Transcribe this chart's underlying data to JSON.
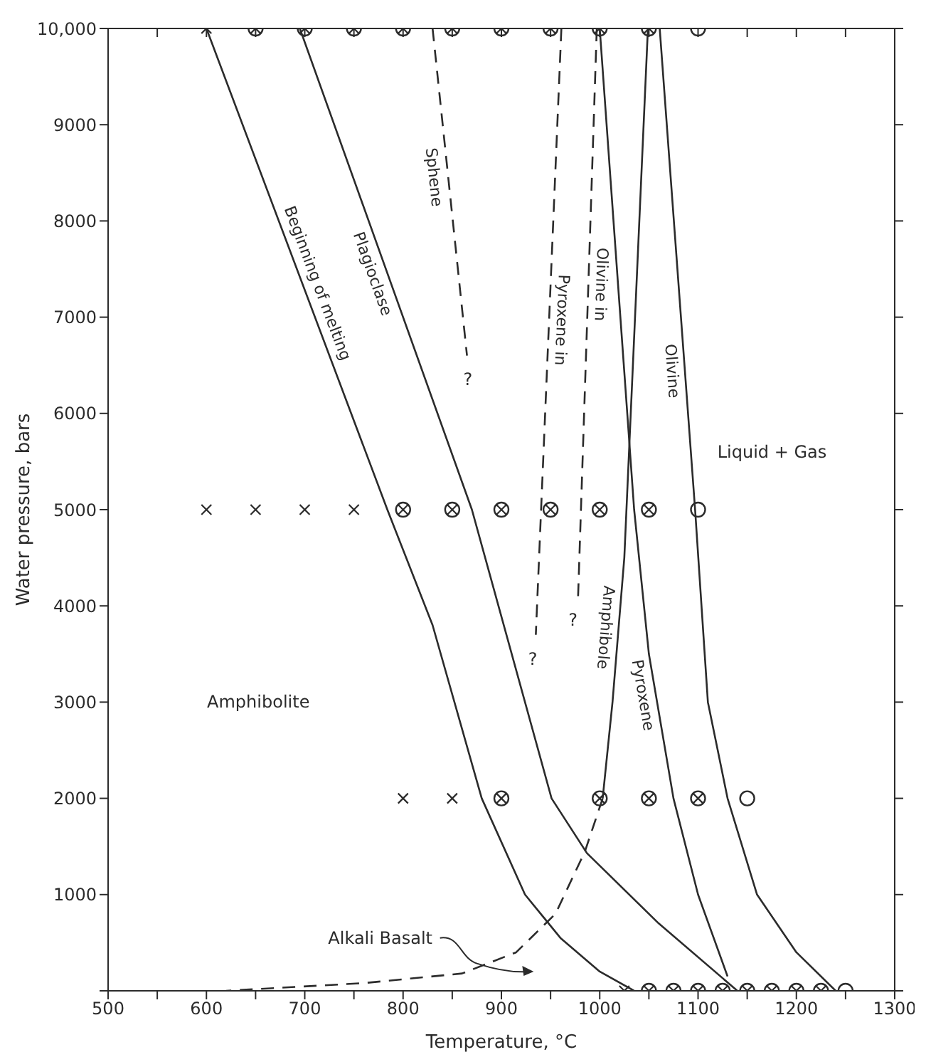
{
  "chart_data": {
    "type": "line",
    "xlabel": "Temperature, °C",
    "ylabel": "Water pressure, bars",
    "xlim": [
      500,
      1300
    ],
    "ylim": [
      0,
      10000
    ],
    "xticks": [
      500,
      {
        "value": 550,
        "label": null
      },
      600,
      {
        "value": 650,
        "label": null
      },
      700,
      {
        "value": 750,
        "label": null
      },
      800,
      {
        "value": 850,
        "label": null
      },
      900,
      {
        "value": 950,
        "label": null
      },
      1000,
      {
        "value": 1050,
        "label": null
      },
      1100,
      {
        "value": 1150,
        "label": null
      },
      1200,
      {
        "value": 1250,
        "label": null
      },
      1300
    ],
    "yticks": [
      {
        "value": 0,
        "label": null
      },
      1000,
      2000,
      3000,
      4000,
      5000,
      6000,
      7000,
      8000,
      9000,
      {
        "value": 10000,
        "label": "10,000"
      }
    ],
    "legend": false,
    "series": [
      {
        "name": "Beginning of melting",
        "color": "#2b2b2b",
        "line_style": "solid",
        "x": [
          600,
          784,
          830,
          880,
          924,
          960,
          1000,
          1035
        ],
        "values": [
          10000,
          5000,
          3800,
          2000,
          1000,
          550,
          200,
          0
        ]
      },
      {
        "name": "Plagioclase",
        "color": "#2b2b2b",
        "line_style": "solid",
        "x": [
          695,
          870,
          951,
          987,
          1060,
          1140
        ],
        "values": [
          10000,
          5000,
          2000,
          1430,
          700,
          0
        ]
      },
      {
        "name": "Sphene",
        "color": "#2b2b2b",
        "line_style": "dashed",
        "x": [
          830,
          865
        ],
        "values": [
          10000,
          6600
        ]
      },
      {
        "name": "Pyroxene in",
        "color": "#2b2b2b",
        "line_style": "dashed",
        "x": [
          961,
          935
        ],
        "values": [
          10000,
          3700
        ]
      },
      {
        "name": "Olivine in",
        "color": "#2b2b2b",
        "line_style": "dashed",
        "x": [
          997,
          978
        ],
        "values": [
          10000,
          4100
        ]
      },
      {
        "name": "Olivine",
        "color": "#2b2b2b",
        "line_style": "solid",
        "x": [
          1061,
          1097,
          1110,
          1130,
          1160,
          1200,
          1240
        ],
        "values": [
          10000,
          5000,
          3000,
          2000,
          1000,
          400,
          0
        ]
      },
      {
        "name": "Amphibole",
        "color": "#2b2b2b",
        "line_style": "solid",
        "x": [
          1049,
          1025,
          1013,
          1003
        ],
        "values": [
          10000,
          4500,
          3000,
          2000
        ]
      },
      {
        "name": "Pyroxene",
        "color": "#2b2b2b",
        "line_style": "solid",
        "x": [
          1000,
          1035,
          1050,
          1075,
          1100,
          1130
        ],
        "values": [
          10000,
          5000,
          3500,
          2000,
          1000,
          150
        ]
      },
      {
        "color": "#2b2b2b",
        "line_style": "dashed",
        "x": [
          1003,
          985,
          955,
          915,
          860,
          760,
          620
        ],
        "values": [
          2000,
          1450,
          800,
          400,
          180,
          80,
          0
        ]
      },
      {
        "type": "scatter",
        "color": "#2b2b2b",
        "marker": "circle",
        "x": [
          650,
          700,
          750,
          800,
          850,
          900,
          950,
          1000,
          1050,
          1100,
          800,
          850,
          900,
          950,
          1000,
          1050,
          1100,
          900,
          1000,
          1050,
          1100,
          1150,
          1050,
          1075,
          1100,
          1125,
          1150,
          1175,
          1200,
          1225,
          1250
        ],
        "values": [
          10000,
          10000,
          10000,
          10000,
          10000,
          10000,
          10000,
          10000,
          10000,
          10000,
          5000,
          5000,
          5000,
          5000,
          5000,
          5000,
          5000,
          2000,
          2000,
          2000,
          2000,
          2000,
          0,
          0,
          0,
          0,
          0,
          0,
          0,
          0,
          0
        ]
      },
      {
        "type": "scatter",
        "color": "#2b2b2b",
        "marker": "cross",
        "x": [
          600,
          650,
          700,
          750,
          800,
          850,
          900,
          950,
          1000,
          1050,
          600,
          650,
          700,
          750,
          800,
          850,
          900,
          950,
          1000,
          1050,
          800,
          850,
          900,
          1000,
          1050,
          1100,
          1025,
          1050,
          1075,
          1100,
          1125,
          1150,
          1175,
          1200,
          1225
        ],
        "values": [
          10000,
          10000,
          10000,
          10000,
          10000,
          10000,
          10000,
          10000,
          10000,
          10000,
          5000,
          5000,
          5000,
          5000,
          5000,
          5000,
          5000,
          5000,
          5000,
          5000,
          2000,
          2000,
          2000,
          2000,
          2000,
          2000,
          0,
          0,
          0,
          0,
          0,
          0,
          0,
          0,
          0
        ]
      }
    ],
    "annotations": [
      "Amphibolite",
      "Liquid + Gas",
      "Alkali Basalt",
      "?",
      "?",
      "?"
    ]
  }
}
